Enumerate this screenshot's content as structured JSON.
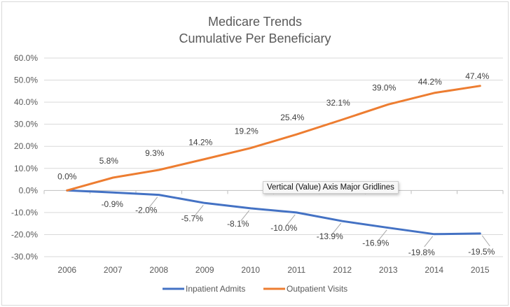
{
  "chart_data": {
    "type": "line",
    "title": "Medicare Trends",
    "subtitle": "Cumulative Per Beneficiary",
    "xlabel": "",
    "ylabel": "",
    "categories": [
      "2006",
      "2007",
      "2008",
      "2009",
      "2010",
      "2011",
      "2012",
      "2013",
      "2014",
      "2015"
    ],
    "ylim": [
      -30,
      60
    ],
    "ytick_step": 10,
    "ytick_labels": [
      "60.0%",
      "50.0%",
      "40.0%",
      "30.0%",
      "20.0%",
      "10.0%",
      "0.0%",
      "-10.0%",
      "-20.0%",
      "-30.0%"
    ],
    "grid": true,
    "legend_position": "bottom",
    "series": [
      {
        "name": "Inpatient Admits",
        "color": "#4472C4",
        "values": [
          0.0,
          -0.9,
          -2.0,
          -5.7,
          -8.1,
          -10.0,
          -13.9,
          -16.9,
          -19.8,
          -19.5
        ],
        "labels": [
          "",
          "-0.9%",
          "-2.0%",
          "-5.7%",
          "-8.1%",
          "-10.0%",
          "-13.9%",
          "-16.9%",
          "-19.8%",
          "-19.5%"
        ]
      },
      {
        "name": "Outpatient Visits",
        "color": "#ED7D31",
        "values": [
          0.0,
          5.8,
          9.3,
          14.2,
          19.2,
          25.4,
          32.1,
          39.0,
          44.2,
          47.4
        ],
        "labels": [
          "0.0%",
          "5.8%",
          "9.3%",
          "14.2%",
          "19.2%",
          "25.4%",
          "32.1%",
          "39.0%",
          "44.2%",
          "47.4%"
        ]
      }
    ]
  },
  "tooltip": {
    "text": "Vertical (Value) Axis Major Gridlines"
  }
}
